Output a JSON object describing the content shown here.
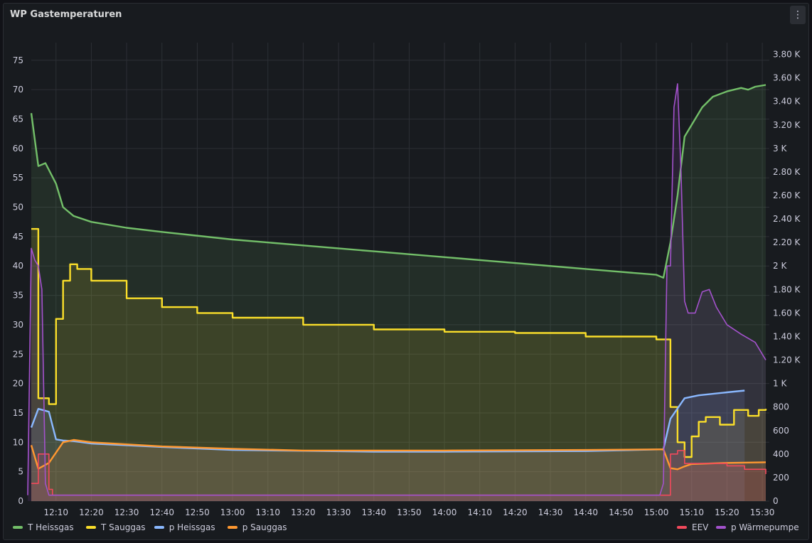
{
  "panel": {
    "title": "WP Gastemperaturen",
    "menu_icon": "⋮"
  },
  "chart_data": {
    "type": "area",
    "title": "WP Gastemperaturen",
    "x_ticks": [
      "12:10",
      "12:20",
      "12:30",
      "12:40",
      "12:50",
      "13:00",
      "13:10",
      "13:20",
      "13:30",
      "13:40",
      "13:50",
      "14:00",
      "14:10",
      "14:20",
      "14:30",
      "14:40",
      "14:50",
      "15:00",
      "15:10",
      "15:20",
      "15:30"
    ],
    "x_range": [
      "12:03",
      "15:32"
    ],
    "y_left": {
      "ticks": [
        "0",
        "5",
        "10",
        "15",
        "20",
        "25",
        "30",
        "35",
        "40",
        "45",
        "50",
        "55",
        "60",
        "65",
        "70",
        "75"
      ],
      "range": [
        0,
        78
      ]
    },
    "y_right": {
      "ticks": [
        "0",
        "200",
        "400",
        "600",
        "800",
        "1 K",
        "1.20 K",
        "1.40 K",
        "1.60 K",
        "1.80 K",
        "2 K",
        "2.20 K",
        "2.40 K",
        "2.60 K",
        "2.80 K",
        "3 K",
        "3.20 K",
        "3.40 K",
        "3.60 K",
        "3.80 K"
      ],
      "range": [
        0,
        3900
      ]
    },
    "grid": true,
    "series": [
      {
        "name": "T Heissgas",
        "color": "#73bf69",
        "axis": "left",
        "points": [
          [
            "12:03",
            66
          ],
          [
            "12:05",
            57
          ],
          [
            "12:07",
            57.5
          ],
          [
            "12:10",
            54
          ],
          [
            "12:12",
            50
          ],
          [
            "12:15",
            48.5
          ],
          [
            "12:20",
            47.5
          ],
          [
            "12:30",
            46.5
          ],
          [
            "12:40",
            45.8
          ],
          [
            "13:00",
            44.5
          ],
          [
            "13:20",
            43.5
          ],
          [
            "13:40",
            42.5
          ],
          [
            "14:00",
            41.5
          ],
          [
            "14:20",
            40.5
          ],
          [
            "14:40",
            39.5
          ],
          [
            "15:00",
            38.5
          ],
          [
            "15:02",
            38
          ],
          [
            "15:04",
            44
          ],
          [
            "15:06",
            52
          ],
          [
            "15:08",
            62
          ],
          [
            "15:10",
            64
          ],
          [
            "15:13",
            67
          ],
          [
            "15:16",
            68.8
          ],
          [
            "15:20",
            69.7
          ],
          [
            "15:24",
            70.3
          ],
          [
            "15:26",
            70
          ],
          [
            "15:28",
            70.5
          ],
          [
            "15:31",
            70.8
          ]
        ]
      },
      {
        "name": "T Sauggas",
        "color": "#fade2a",
        "axis": "left",
        "points": [
          [
            "12:03",
            46.3
          ],
          [
            "12:05",
            17.5
          ],
          [
            "12:08",
            16.5
          ],
          [
            "12:10",
            31
          ],
          [
            "12:12",
            37.5
          ],
          [
            "12:14",
            40.3
          ],
          [
            "12:16",
            39.5
          ],
          [
            "12:20",
            37.5
          ],
          [
            "12:30",
            34.5
          ],
          [
            "12:40",
            33
          ],
          [
            "12:50",
            32
          ],
          [
            "13:00",
            31.2
          ],
          [
            "13:20",
            30
          ],
          [
            "13:40",
            29.2
          ],
          [
            "14:00",
            28.8
          ],
          [
            "14:20",
            28.6
          ],
          [
            "14:40",
            28
          ],
          [
            "15:00",
            27.5
          ],
          [
            "15:03",
            27.5
          ],
          [
            "15:04",
            16
          ],
          [
            "15:06",
            10
          ],
          [
            "15:08",
            7.5
          ],
          [
            "15:10",
            11
          ],
          [
            "15:12",
            13.5
          ],
          [
            "15:14",
            14.3
          ],
          [
            "15:18",
            13
          ],
          [
            "15:22",
            15.5
          ],
          [
            "15:26",
            14.5
          ],
          [
            "15:29",
            15.5
          ],
          [
            "15:31",
            15.7
          ]
        ]
      },
      {
        "name": "p Heissgas",
        "color": "#8ab8ff",
        "axis": "left",
        "points": [
          [
            "12:03",
            12.5
          ],
          [
            "12:05",
            15.7
          ],
          [
            "12:08",
            15.2
          ],
          [
            "12:10",
            10.5
          ],
          [
            "12:12",
            10.3
          ],
          [
            "12:15",
            10.2
          ],
          [
            "12:20",
            9.8
          ],
          [
            "12:40",
            9.2
          ],
          [
            "13:00",
            8.7
          ],
          [
            "13:40",
            8.4
          ],
          [
            "14:00",
            8.4
          ],
          [
            "14:40",
            8.5
          ],
          [
            "15:02",
            8.8
          ],
          [
            "15:04",
            14
          ],
          [
            "15:08",
            17.5
          ],
          [
            "15:12",
            18
          ],
          [
            "15:20",
            18.5
          ],
          [
            "15:25",
            18.8
          ]
        ]
      },
      {
        "name": "p Sauggas",
        "color": "#ff9830",
        "axis": "left",
        "points": [
          [
            "12:03",
            9.5
          ],
          [
            "12:05",
            5.5
          ],
          [
            "12:08",
            6.5
          ],
          [
            "12:12",
            10
          ],
          [
            "12:15",
            10.4
          ],
          [
            "12:20",
            10
          ],
          [
            "12:40",
            9.3
          ],
          [
            "13:00",
            8.9
          ],
          [
            "13:20",
            8.6
          ],
          [
            "14:00",
            8.6
          ],
          [
            "14:40",
            8.7
          ],
          [
            "15:02",
            8.8
          ],
          [
            "15:04",
            5.6
          ],
          [
            "15:06",
            5.4
          ],
          [
            "15:08",
            5.9
          ],
          [
            "15:10",
            6.3
          ],
          [
            "15:20",
            6.5
          ],
          [
            "15:31",
            6.6
          ]
        ]
      },
      {
        "name": "EEV",
        "color": "#f2495c",
        "axis": "right",
        "points": [
          [
            "12:03",
            150
          ],
          [
            "12:05",
            400
          ],
          [
            "12:08",
            100
          ],
          [
            "12:09",
            50
          ],
          [
            "15:03",
            50
          ],
          [
            "15:04",
            400
          ],
          [
            "15:06",
            430
          ],
          [
            "15:08",
            320
          ],
          [
            "15:20",
            300
          ],
          [
            "15:25",
            270
          ],
          [
            "15:31",
            230
          ]
        ]
      },
      {
        "name": "p Wärmepumpe",
        "color": "#a352cc",
        "axis": "right",
        "points": [
          [
            "12:02",
            50
          ],
          [
            "12:03",
            2150
          ],
          [
            "12:04",
            2050
          ],
          [
            "12:05",
            2000
          ],
          [
            "12:06",
            1800
          ],
          [
            "12:07",
            150
          ],
          [
            "12:08",
            50
          ],
          [
            "15:01",
            50
          ],
          [
            "15:02",
            150
          ],
          [
            "15:03",
            2000
          ],
          [
            "15:04",
            2000
          ],
          [
            "15:05",
            3350
          ],
          [
            "15:06",
            3550
          ],
          [
            "15:07",
            2800
          ],
          [
            "15:08",
            1700
          ],
          [
            "15:09",
            1600
          ],
          [
            "15:11",
            1600
          ],
          [
            "15:13",
            1780
          ],
          [
            "15:15",
            1800
          ],
          [
            "15:17",
            1650
          ],
          [
            "15:20",
            1500
          ],
          [
            "15:24",
            1420
          ],
          [
            "15:28",
            1350
          ],
          [
            "15:31",
            1200
          ]
        ]
      }
    ],
    "legend": {
      "placement": "bottom",
      "left": [
        "T Heissgas",
        "T Sauggas",
        "p Heissgas",
        "p Sauggas"
      ],
      "right": [
        "EEV",
        "p Wärmepumpe"
      ]
    }
  }
}
